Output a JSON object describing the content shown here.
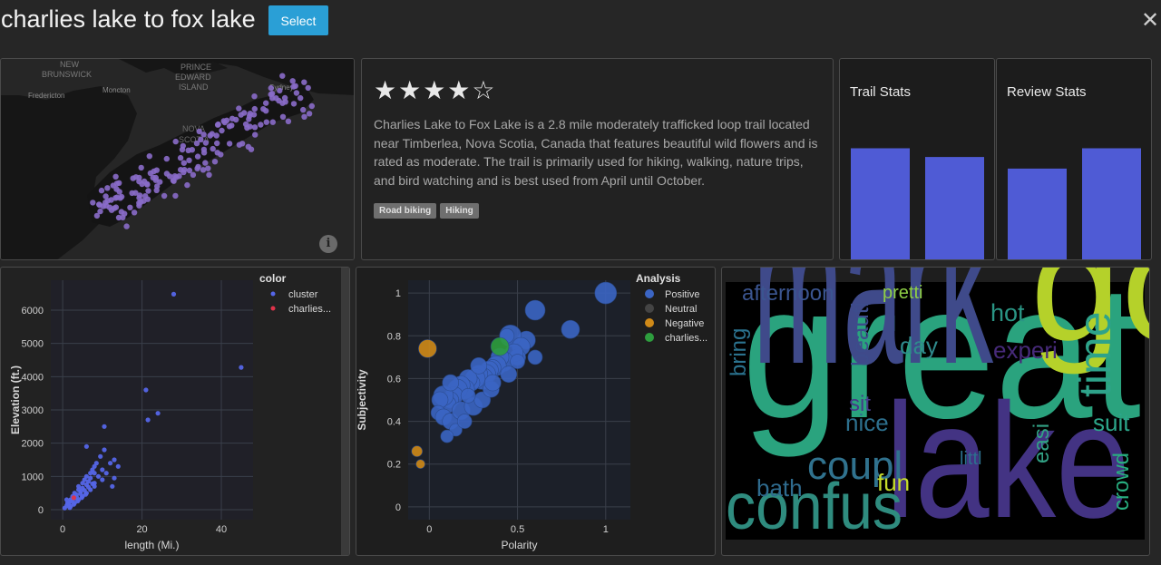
{
  "header": {
    "title": "charlies lake to fox lake",
    "select_label": "Select",
    "close_icon": "close-icon"
  },
  "map": {
    "labels": [
      "NEW",
      "BRUNSWICK",
      "PRINCE",
      "EDWARD",
      "ISLAND",
      "Fredericton",
      "Moncton",
      "Sydney",
      "NOVA",
      "SCOTIA"
    ],
    "info_icon": "info-icon",
    "point_color": "#8a6bc9"
  },
  "trail": {
    "stars": "★★★★☆",
    "description": "Charlies Lake to Fox Lake is a 2.8 mile moderately trafficked loop trail located near Timberlea, Nova Scotia, Canada that features beautiful wild flowers and is rated as moderate. The trail is primarily used for hiking, walking, nature trips, and bird watching and is best used from April until October.",
    "tags": [
      "Road biking",
      "Hiking"
    ]
  },
  "trail_stats": {
    "title": "Trail Stats"
  },
  "review_stats": {
    "title": "Review Stats"
  },
  "chart_data": [
    {
      "type": "bar",
      "title": "Trail Stats",
      "values": [
        0.78,
        0.72
      ],
      "ylim": [
        0,
        1
      ],
      "color": "#4f5bd5"
    },
    {
      "type": "bar",
      "title": "Review Stats",
      "values": [
        0.64,
        0.78
      ],
      "ylim": [
        0,
        1
      ],
      "color": "#4f5bd5"
    },
    {
      "type": "scatter",
      "xlabel": "length (Mi.)",
      "ylabel": "Elevation (ft.)",
      "xlim": [
        -3,
        48
      ],
      "ylim": [
        -300,
        6900
      ],
      "xticks": [
        "0",
        "20",
        "40"
      ],
      "xtick_values": [
        0,
        20,
        40
      ],
      "yticks": [
        "0",
        "1000",
        "2000",
        "3000",
        "4000",
        "5000",
        "6000"
      ],
      "ytick_values": [
        0,
        1000,
        2000,
        3000,
        4000,
        5000,
        6000
      ],
      "legend_title": "color",
      "legend": [
        "cluster",
        "charlies..."
      ],
      "series": [
        {
          "name": "cluster",
          "color": "#5566e8",
          "x": [
            0.5,
            1,
            1.2,
            1.5,
            2,
            2,
            2.5,
            3,
            3,
            3.5,
            4,
            4,
            4.5,
            5,
            5,
            5.5,
            6,
            6,
            6.5,
            7,
            7,
            7.5,
            8,
            8,
            8.5,
            9,
            9.5,
            10,
            10,
            10.5,
            11,
            12,
            12.5,
            13,
            14,
            1,
            1.5,
            2.5,
            3.5,
            4.5,
            5.5,
            6.5,
            7.5,
            2,
            3,
            4,
            5,
            6,
            7,
            8,
            1.8,
            2.8,
            3.8,
            4.8,
            5.8,
            28,
            45,
            21,
            21.5,
            24,
            10.5,
            6,
            8,
            13
          ],
          "y": [
            50,
            120,
            200,
            150,
            300,
            250,
            400,
            350,
            500,
            450,
            600,
            700,
            550,
            800,
            650,
            900,
            750,
            1000,
            850,
            1100,
            950,
            1200,
            1300,
            800,
            1400,
            1000,
            1600,
            1200,
            900,
            1800,
            1100,
            1400,
            700,
            1500,
            1300,
            300,
            180,
            280,
            380,
            480,
            580,
            680,
            780,
            100,
            200,
            300,
            400,
            500,
            600,
            700,
            60,
            160,
            260,
            360,
            460,
            6480,
            4280,
            3600,
            2700,
            2900,
            2500,
            1900,
            1100,
            950
          ]
        },
        {
          "name": "charlies...",
          "color": "#e0334a",
          "x": [
            2.8
          ],
          "y": [
            360
          ]
        }
      ]
    },
    {
      "type": "scatter",
      "xlabel": "Polarity",
      "ylabel": "Subjectivity",
      "xlim": [
        -0.12,
        1.14
      ],
      "ylim": [
        -0.06,
        1.06
      ],
      "xticks": [
        "0",
        "0.5",
        "1"
      ],
      "xtick_values": [
        0,
        0.5,
        1
      ],
      "yticks": [
        "0",
        "0.2",
        "0.4",
        "0.6",
        "0.8",
        "1"
      ],
      "ytick_values": [
        0,
        0.2,
        0.4,
        0.6,
        0.8,
        1
      ],
      "legend_title": "Analysis",
      "legend": [
        "Positive",
        "Neutral",
        "Negative",
        "charlies..."
      ],
      "series": [
        {
          "name": "Positive",
          "color": "#3b65c4",
          "x": [
            1.0,
            0.6,
            0.8,
            0.55,
            0.46,
            0.52,
            0.5,
            0.48,
            0.42,
            0.4,
            0.38,
            0.36,
            0.34,
            0.32,
            0.3,
            0.28,
            0.26,
            0.24,
            0.22,
            0.2,
            0.18,
            0.16,
            0.14,
            0.12,
            0.1,
            0.08,
            0.06,
            0.05,
            0.08,
            0.12,
            0.18,
            0.25,
            0.3,
            0.35,
            0.45,
            0.5,
            0.6,
            0.15,
            0.1,
            0.2,
            0.36,
            0.28,
            0.22,
            0.44,
            0.12
          ],
          "y": [
            1.0,
            0.92,
            0.83,
            0.78,
            0.8,
            0.75,
            0.7,
            0.72,
            0.68,
            0.7,
            0.66,
            0.65,
            0.64,
            0.62,
            0.6,
            0.62,
            0.6,
            0.58,
            0.6,
            0.55,
            0.57,
            0.55,
            0.52,
            0.5,
            0.48,
            0.52,
            0.5,
            0.44,
            0.42,
            0.4,
            0.45,
            0.47,
            0.5,
            0.55,
            0.62,
            0.68,
            0.7,
            0.36,
            0.33,
            0.4,
            0.58,
            0.66,
            0.52,
            0.8,
            0.58
          ],
          "sizes": [
            12,
            11,
            10,
            10,
            12,
            10,
            9,
            10,
            11,
            10,
            11,
            9,
            10,
            11,
            12,
            10,
            11,
            9,
            10,
            11,
            10,
            11,
            10,
            9,
            10,
            11,
            9,
            8,
            9,
            9,
            10,
            10,
            9,
            9,
            9,
            8,
            8,
            7,
            7,
            8,
            9,
            9,
            8,
            8,
            9
          ]
        },
        {
          "name": "Negative",
          "color": "#d08a18",
          "x": [
            -0.01,
            -0.07,
            -0.05
          ],
          "y": [
            0.74,
            0.26,
            0.2
          ],
          "sizes": [
            10,
            6,
            5
          ]
        },
        {
          "name": "charlies...",
          "color": "#2e9e3e",
          "x": [
            0.4
          ],
          "y": [
            0.75
          ],
          "sizes": [
            10
          ]
        }
      ]
    }
  ],
  "wordcloud": {
    "words": [
      {
        "text": "great",
        "color": "#2aa37e"
      },
      {
        "text": "mark",
        "color": "#3f4a8a"
      },
      {
        "text": "got",
        "color": "#b5d12a"
      },
      {
        "text": "lake",
        "color": "#433383"
      },
      {
        "text": "confus",
        "color": "#2f8c7f"
      },
      {
        "text": "coupl",
        "color": "#30728e"
      },
      {
        "text": "time",
        "color": "#2ea38a"
      },
      {
        "text": "afternoon",
        "color": "#3b5590"
      },
      {
        "text": "pretti",
        "color": "#8fd045"
      },
      {
        "text": "hot",
        "color": "#2a9584"
      },
      {
        "text": "beauti",
        "color": "#3d4c8c"
      },
      {
        "text": "day",
        "color": "#2f8a8c"
      },
      {
        "text": "experi",
        "color": "#472a7a"
      },
      {
        "text": "bring",
        "color": "#2b728e"
      },
      {
        "text": "sit",
        "color": "#463a8a"
      },
      {
        "text": "nice",
        "color": "#2d708e"
      },
      {
        "text": "suit",
        "color": "#2ca68a"
      },
      {
        "text": "easi",
        "color": "#32a285"
      },
      {
        "text": "littl",
        "color": "#2c708e"
      },
      {
        "text": "crowd",
        "color": "#28ae80"
      },
      {
        "text": "bath",
        "color": "#2f6b8e"
      },
      {
        "text": "fun",
        "color": "#c7dd2a"
      }
    ]
  }
}
